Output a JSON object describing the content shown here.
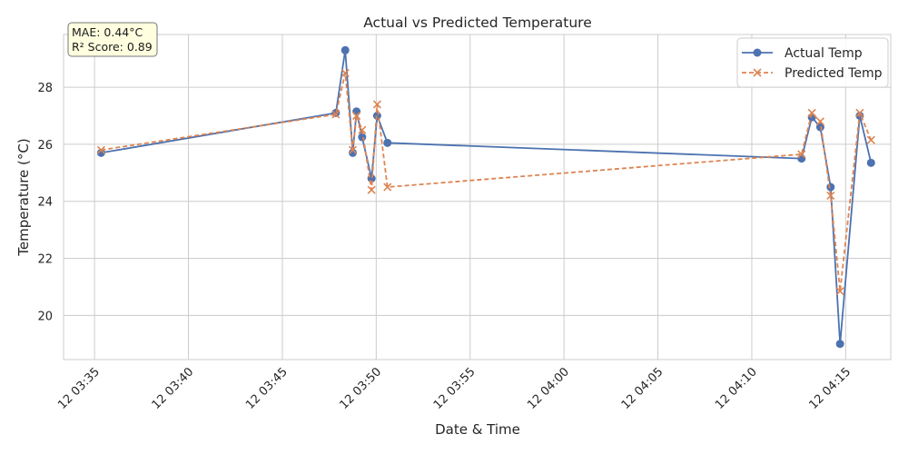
{
  "chart_data": {
    "type": "line",
    "title": "Actual vs Predicted Temperature",
    "xlabel": "Date & Time",
    "ylabel": "Temperature (°C)",
    "x_ticks": [
      "12 03:35",
      "12 03:40",
      "12 03:45",
      "12 03:50",
      "12 03:55",
      "12 04:00",
      "12 04:05",
      "12 04:10",
      "12 04:15"
    ],
    "x_tick_minutes": [
      0,
      5,
      10,
      15,
      20,
      25,
      30,
      35,
      40
    ],
    "xlim_minutes": [
      -1.65,
      42.4
    ],
    "y_ticks": [
      20,
      22,
      24,
      26,
      28
    ],
    "ylim": [
      18.45,
      29.85
    ],
    "grid": true,
    "legend_position": "top-right",
    "annotation": {
      "mae": "MAE: 0.44°C",
      "r2": "R² Score: 0.89"
    },
    "series": [
      {
        "name": "Actual Temp",
        "color": "#4c72b0",
        "line_style": "solid",
        "marker": "circle",
        "x": [
          0.35,
          12.85,
          13.35,
          13.75,
          13.95,
          14.25,
          14.75,
          15.05,
          15.6,
          37.65,
          38.2,
          38.65,
          39.2,
          39.7,
          40.75,
          41.35
        ],
        "y": [
          25.7,
          27.1,
          29.3,
          25.7,
          27.15,
          26.25,
          24.8,
          27.0,
          26.05,
          25.5,
          26.95,
          26.6,
          24.5,
          19.0,
          27.0,
          25.35
        ]
      },
      {
        "name": "Predicted Temp",
        "color": "#dd8452",
        "line_style": "dashed",
        "marker": "x",
        "x": [
          0.35,
          12.85,
          13.35,
          13.75,
          13.95,
          14.25,
          14.75,
          15.05,
          15.6,
          37.65,
          38.2,
          38.65,
          39.2,
          39.7,
          40.75,
          41.35
        ],
        "y": [
          25.8,
          27.05,
          28.5,
          25.8,
          27.0,
          26.5,
          24.4,
          27.4,
          24.5,
          25.65,
          27.1,
          26.8,
          24.2,
          20.85,
          27.1,
          26.15
        ]
      }
    ]
  }
}
